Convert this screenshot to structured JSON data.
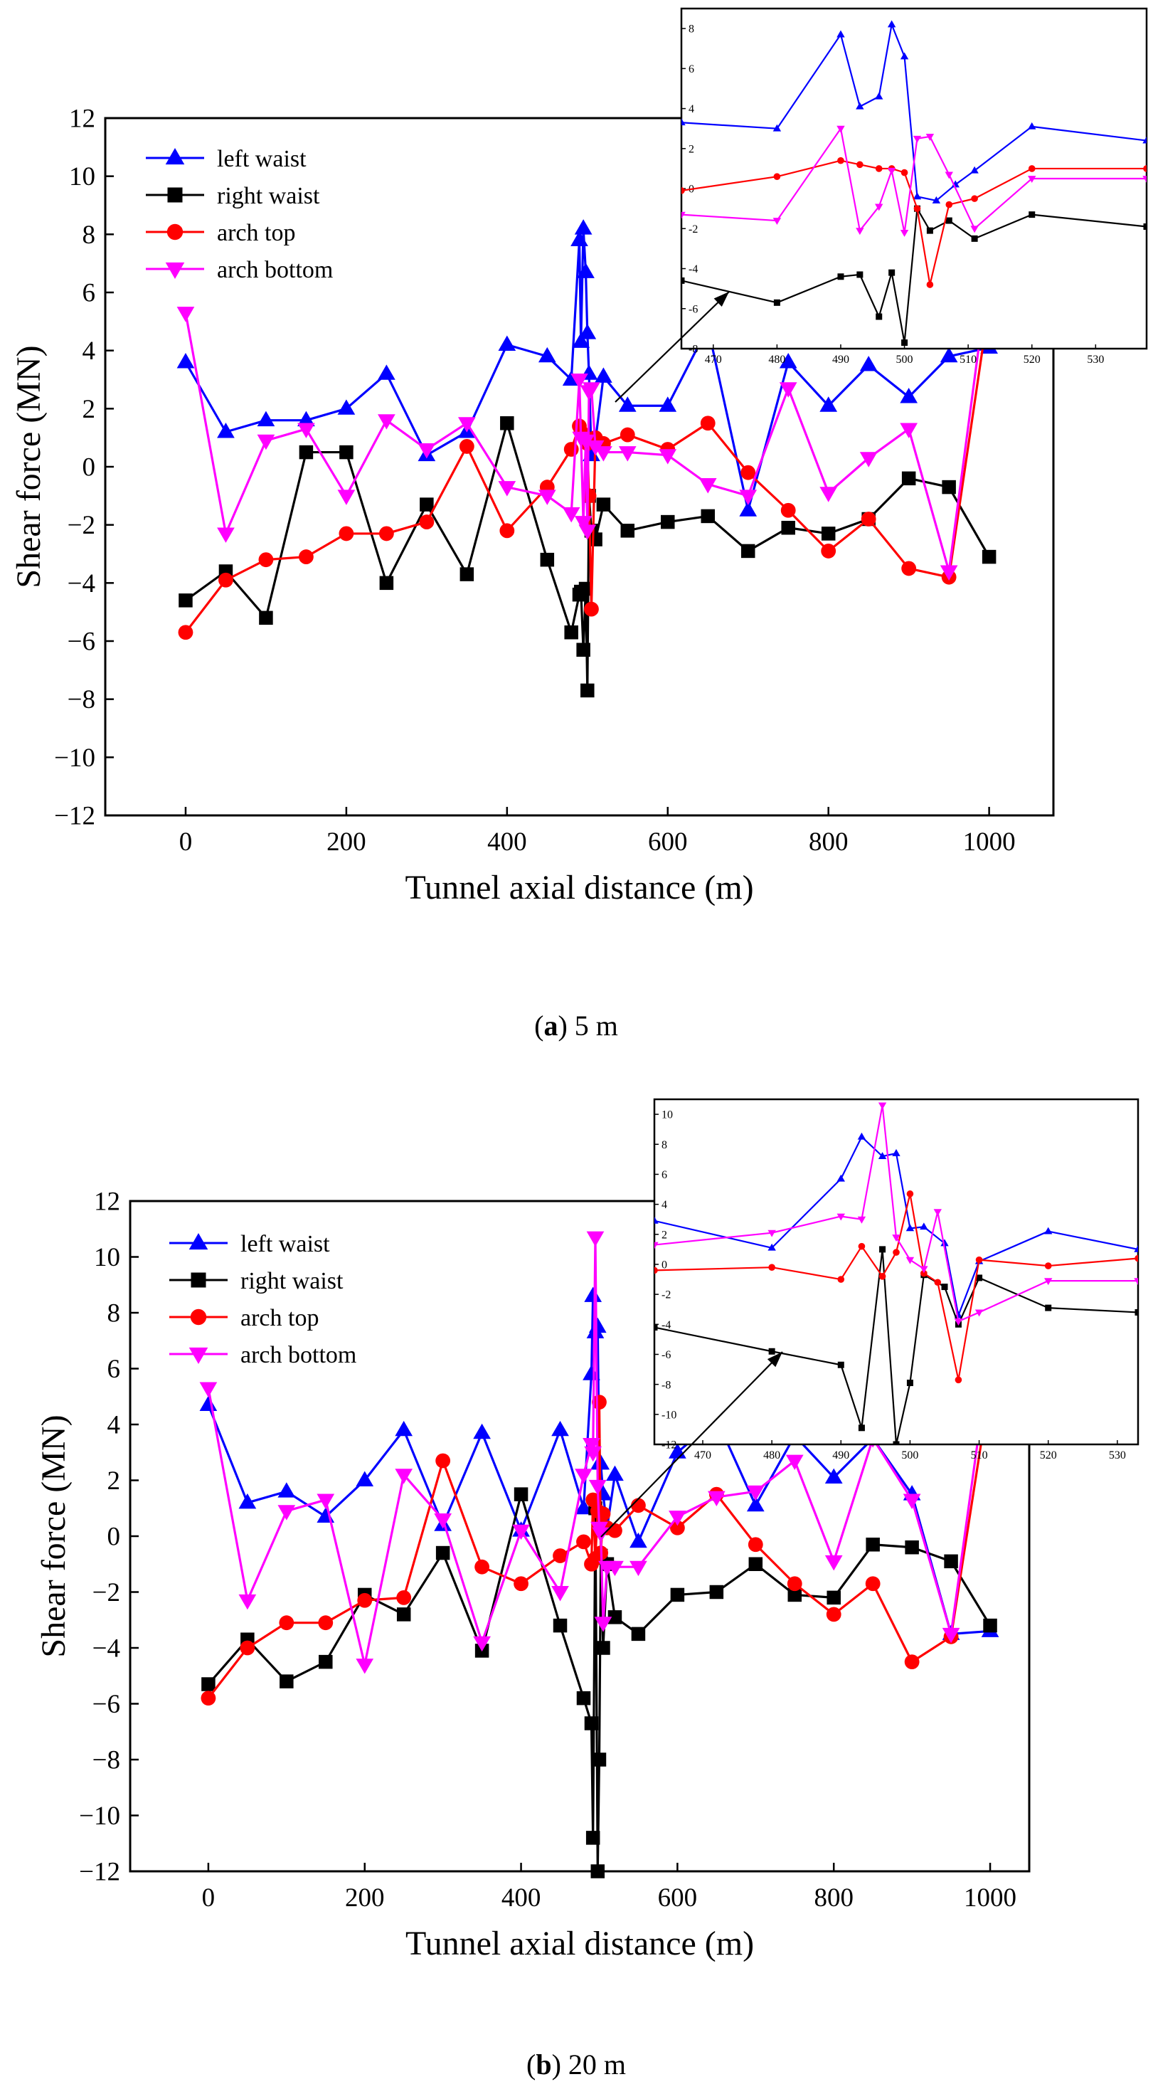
{
  "colors": {
    "left_waist": "#0000ff",
    "right_waist": "#000000",
    "arch_top": "#ff0000",
    "arch_bottom": "#ff00ff"
  },
  "chart_data": [
    {
      "type": "line",
      "caption_letter": "a",
      "caption_rest": " 5 m",
      "xlabel": "Tunnel axial distance (m)",
      "ylabel": "Shear force (MN)",
      "xlim": [
        -100,
        1080
      ],
      "ylim": [
        -12,
        12
      ],
      "xticks": [
        0,
        200,
        400,
        600,
        800,
        1000
      ],
      "yticks": [
        -12,
        -10,
        -8,
        -6,
        -4,
        -2,
        0,
        2,
        4,
        6,
        8,
        10,
        12
      ],
      "legend_position": "top-left",
      "series": [
        {
          "name": "left waist",
          "color_key": "left_waist",
          "marker": "triangle-up",
          "x": [
            0,
            50,
            100,
            150,
            200,
            250,
            300,
            350,
            400,
            450,
            480,
            490,
            492,
            495,
            498,
            500,
            502,
            505,
            510,
            520,
            550,
            600,
            650,
            700,
            750,
            800,
            850,
            900,
            950,
            1000
          ],
          "y": [
            3.6,
            1.2,
            1.6,
            1.6,
            2.0,
            3.2,
            0.4,
            1.2,
            4.2,
            3.8,
            3.0,
            7.8,
            4.3,
            8.2,
            6.7,
            4.6,
            3.2,
            0.4,
            0.9,
            3.1,
            2.1,
            2.1,
            4.8,
            -1.5,
            3.6,
            2.1,
            3.5,
            2.4,
            3.8,
            4.1
          ]
        },
        {
          "name": "right waist",
          "color_key": "right_waist",
          "marker": "square",
          "x": [
            0,
            50,
            100,
            150,
            200,
            250,
            300,
            350,
            400,
            450,
            480,
            490,
            492,
            495,
            498,
            500,
            502,
            505,
            510,
            520,
            550,
            600,
            650,
            700,
            750,
            800,
            850,
            900,
            950,
            1000
          ],
          "y": [
            -4.6,
            -3.6,
            -5.2,
            0.5,
            0.5,
            -4.0,
            -1.3,
            -3.7,
            1.5,
            -3.2,
            -5.7,
            -4.4,
            -4.3,
            -6.3,
            -4.2,
            -7.7,
            -1.0,
            -2.2,
            -2.5,
            -1.3,
            -2.2,
            -1.9,
            -1.7,
            -2.9,
            -2.1,
            -2.3,
            -1.8,
            -0.4,
            -0.7,
            -3.1
          ]
        },
        {
          "name": "arch top",
          "color_key": "arch_top",
          "marker": "circle",
          "x": [
            0,
            50,
            100,
            150,
            200,
            250,
            300,
            350,
            400,
            450,
            480,
            490,
            492,
            495,
            498,
            500,
            502,
            505,
            510,
            520,
            550,
            600,
            650,
            700,
            750,
            800,
            850,
            900,
            950,
            1000
          ],
          "y": [
            -5.7,
            -3.9,
            -3.2,
            -3.1,
            -2.3,
            -2.3,
            -1.9,
            0.7,
            -2.2,
            -0.7,
            0.6,
            1.4,
            1.2,
            1.1,
            1.0,
            0.8,
            -1.0,
            -4.9,
            1.0,
            0.8,
            1.1,
            0.6,
            1.5,
            -0.2,
            -1.5,
            -2.9,
            -1.8,
            -3.5,
            -3.8,
            5.6
          ]
        },
        {
          "name": "arch bottom",
          "color_key": "arch_bottom",
          "marker": "triangle-down",
          "x": [
            0,
            50,
            100,
            150,
            200,
            250,
            300,
            350,
            400,
            450,
            480,
            490,
            492,
            495,
            498,
            500,
            502,
            505,
            510,
            520,
            550,
            600,
            650,
            700,
            750,
            800,
            850,
            900,
            950,
            1000
          ],
          "y": [
            5.3,
            -2.3,
            0.9,
            1.3,
            -1.0,
            1.6,
            0.6,
            1.5,
            -0.7,
            -1.0,
            -1.6,
            3.0,
            1.0,
            -1.9,
            0.9,
            -2.2,
            2.6,
            2.7,
            0.7,
            0.5,
            0.5,
            0.4,
            -0.6,
            -1.0,
            2.7,
            -0.9,
            0.3,
            1.3,
            -3.6,
            6.8
          ]
        }
      ],
      "inset": {
        "xlim": [
          465,
          538
        ],
        "ylim": [
          -8,
          9
        ],
        "xticks": [
          470,
          480,
          490,
          500,
          510,
          520,
          530
        ],
        "xtick_labels": [
          "470",
          "480",
          "490",
          "500",
          "510",
          "520",
          "530"
        ],
        "yticks": [
          -8,
          -6,
          -4,
          -2,
          0,
          2,
          4,
          6,
          8
        ],
        "series": [
          {
            "color_key": "left_waist",
            "marker": "triangle-up",
            "x": [
              465,
              480,
              490,
              493,
              496,
              498,
              500,
              502,
              505,
              508,
              511,
              520,
              538
            ],
            "y": [
              3.3,
              3.0,
              7.7,
              4.1,
              4.6,
              8.2,
              6.6,
              -0.4,
              -0.6,
              0.2,
              0.9,
              3.1,
              2.4
            ]
          },
          {
            "color_key": "right_waist",
            "marker": "square",
            "x": [
              465,
              480,
              490,
              493,
              496,
              498,
              500,
              502,
              504,
              507,
              511,
              520,
              538
            ],
            "y": [
              -4.6,
              -5.7,
              -4.4,
              -4.3,
              -6.4,
              -4.2,
              -7.7,
              -1.0,
              -2.1,
              -1.6,
              -2.5,
              -1.3,
              -1.9
            ]
          },
          {
            "color_key": "arch_top",
            "marker": "circle",
            "x": [
              465,
              480,
              490,
              493,
              496,
              498,
              500,
              502,
              504,
              507,
              511,
              520,
              538
            ],
            "y": [
              -0.1,
              0.6,
              1.4,
              1.2,
              1.0,
              1.0,
              0.8,
              -1.0,
              -4.8,
              -0.8,
              -0.5,
              1.0,
              1.0
            ]
          },
          {
            "color_key": "arch_bottom",
            "marker": "triangle-down",
            "x": [
              465,
              480,
              490,
              493,
              496,
              498,
              500,
              502,
              504,
              507,
              511,
              520,
              538
            ],
            "y": [
              -1.3,
              -1.6,
              3.0,
              -2.1,
              -0.9,
              0.9,
              -2.2,
              2.5,
              2.6,
              0.7,
              -2.0,
              0.5,
              0.5
            ]
          }
        ]
      }
    },
    {
      "type": "line",
      "caption_letter": "b",
      "caption_rest": " 20 m",
      "xlabel": "Tunnel axial distance (m)",
      "ylabel": "Shear force (MN)",
      "xlim": [
        -100,
        1050
      ],
      "ylim": [
        -12,
        12
      ],
      "xticks": [
        0,
        200,
        400,
        600,
        800,
        1000
      ],
      "yticks": [
        -12,
        -10,
        -8,
        -6,
        -4,
        -2,
        0,
        2,
        4,
        6,
        8,
        10,
        12
      ],
      "legend_position": "top-left",
      "series": [
        {
          "name": "left waist",
          "color_key": "left_waist",
          "marker": "triangle-up",
          "x": [
            0,
            50,
            100,
            150,
            200,
            250,
            300,
            350,
            400,
            450,
            480,
            490,
            492,
            495,
            498,
            500,
            502,
            505,
            510,
            520,
            550,
            600,
            650,
            700,
            750,
            800,
            850,
            900,
            950,
            1000
          ],
          "y": [
            4.7,
            1.2,
            1.6,
            0.7,
            2.0,
            3.8,
            0.4,
            3.7,
            0.2,
            3.8,
            1.0,
            5.8,
            8.6,
            7.3,
            7.5,
            2.6,
            2.6,
            1.5,
            0.3,
            2.2,
            -0.2,
            3.0,
            4.2,
            1.1,
            3.6,
            2.1,
            3.5,
            1.5,
            -3.5,
            -3.4
          ]
        },
        {
          "name": "right waist",
          "color_key": "right_waist",
          "marker": "square",
          "x": [
            0,
            50,
            100,
            150,
            200,
            250,
            300,
            350,
            400,
            450,
            480,
            490,
            492,
            495,
            498,
            500,
            502,
            505,
            510,
            520,
            550,
            600,
            650,
            700,
            750,
            800,
            850,
            900,
            950,
            1000
          ],
          "y": [
            -5.3,
            -3.7,
            -5.2,
            -4.5,
            -2.1,
            -2.8,
            -0.6,
            -4.1,
            1.5,
            -3.2,
            -5.8,
            -6.7,
            -10.8,
            1.0,
            -12.0,
            -8.0,
            -0.7,
            -4.0,
            -1.0,
            -2.9,
            -3.5,
            -2.1,
            -2.0,
            -1.0,
            -2.1,
            -2.2,
            -0.3,
            -0.4,
            -0.9,
            -3.2
          ]
        },
        {
          "name": "arch top",
          "color_key": "arch_top",
          "marker": "circle",
          "x": [
            0,
            50,
            100,
            150,
            200,
            250,
            300,
            350,
            400,
            450,
            480,
            490,
            492,
            495,
            498,
            500,
            502,
            505,
            510,
            520,
            550,
            600,
            650,
            700,
            750,
            800,
            850,
            900,
            950,
            1000
          ],
          "y": [
            -5.8,
            -4.0,
            -3.1,
            -3.1,
            -2.3,
            -2.2,
            2.7,
            -1.1,
            -1.7,
            -0.7,
            -0.2,
            -1.0,
            1.3,
            -0.8,
            0.9,
            4.8,
            -0.6,
            0.8,
            0.3,
            0.2,
            1.1,
            0.3,
            1.5,
            -0.3,
            -1.7,
            -2.8,
            -1.7,
            -4.5,
            -3.6,
            5.4
          ]
        },
        {
          "name": "arch bottom",
          "color_key": "arch_bottom",
          "marker": "triangle-down",
          "x": [
            0,
            50,
            100,
            150,
            200,
            250,
            300,
            350,
            400,
            450,
            480,
            490,
            492,
            495,
            498,
            500,
            502,
            505,
            510,
            520,
            550,
            600,
            650,
            700,
            750,
            800,
            850,
            900,
            950,
            1000
          ],
          "y": [
            5.3,
            -2.3,
            0.9,
            1.3,
            -4.6,
            2.2,
            0.6,
            -3.8,
            0.2,
            -2.0,
            2.2,
            3.3,
            3.0,
            10.7,
            1.8,
            0.3,
            0.1,
            -3.1,
            -1.1,
            -1.1,
            -1.1,
            0.7,
            1.4,
            1.6,
            2.7,
            -0.9,
            3.5,
            1.3,
            -3.5,
            6.6
          ]
        }
      ],
      "inset": {
        "xlim": [
          463,
          533
        ],
        "ylim": [
          -12,
          11
        ],
        "xticks": [
          470,
          480,
          490,
          500,
          510,
          520,
          530
        ],
        "xtick_labels": [
          "470",
          "480",
          "490",
          "500",
          "510",
          "520",
          "530"
        ],
        "yticks": [
          -12,
          -10,
          -8,
          -6,
          -4,
          -2,
          0,
          2,
          4,
          6,
          8,
          10
        ],
        "series": [
          {
            "color_key": "left_waist",
            "marker": "triangle-up",
            "x": [
              463,
              480,
              490,
              493,
              496,
              498,
              500,
              502,
              505,
              507,
              510,
              520,
              533
            ],
            "y": [
              2.9,
              1.1,
              5.7,
              8.5,
              7.2,
              7.4,
              2.4,
              2.5,
              1.4,
              -3.4,
              0.2,
              2.2,
              1.0
            ]
          },
          {
            "color_key": "right_waist",
            "marker": "square",
            "x": [
              463,
              480,
              490,
              493,
              496,
              498,
              500,
              502,
              505,
              507,
              510,
              520,
              533
            ],
            "y": [
              -4.2,
              -5.8,
              -6.7,
              -10.9,
              1.0,
              -12.0,
              -7.9,
              -0.7,
              -1.5,
              -4.0,
              -0.9,
              -2.9,
              -3.2
            ]
          },
          {
            "color_key": "arch_top",
            "marker": "circle",
            "x": [
              463,
              480,
              490,
              493,
              496,
              498,
              500,
              502,
              504,
              507,
              510,
              520,
              533
            ],
            "y": [
              -0.4,
              -0.2,
              -1.0,
              1.2,
              -0.8,
              0.8,
              4.7,
              -0.6,
              -1.2,
              -7.7,
              0.3,
              -0.1,
              0.4
            ]
          },
          {
            "color_key": "arch_bottom",
            "marker": "triangle-down",
            "x": [
              463,
              480,
              490,
              493,
              496,
              498,
              500,
              502,
              504,
              507,
              510,
              520,
              533
            ],
            "y": [
              1.3,
              2.1,
              3.2,
              3.0,
              10.6,
              1.8,
              0.3,
              -0.3,
              3.5,
              -3.8,
              -3.2,
              -1.1,
              -1.1
            ]
          }
        ]
      }
    }
  ]
}
